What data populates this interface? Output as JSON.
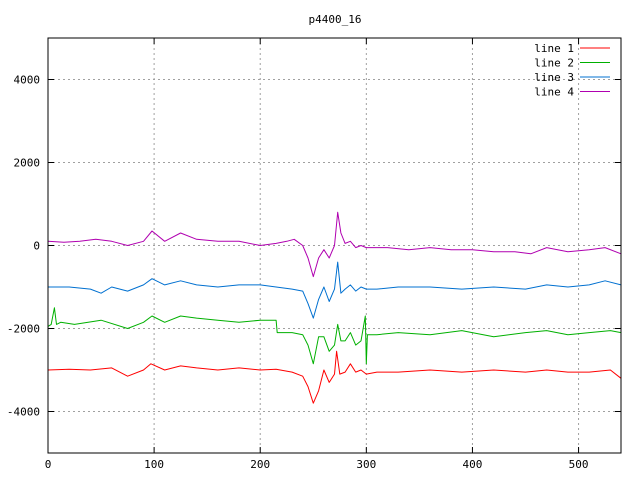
{
  "chart_data": {
    "type": "line",
    "title": "p4400_16",
    "xlabel": "",
    "ylabel": "",
    "xlim": [
      0,
      540
    ],
    "ylim": [
      -5000,
      5000
    ],
    "xticks": [
      0,
      100,
      200,
      300,
      400,
      500
    ],
    "yticks": [
      -4000,
      -2000,
      0,
      2000,
      4000
    ],
    "grid": true,
    "legend_position": "top-right",
    "series": [
      {
        "name": "line 1",
        "color": "#ff0000",
        "x": [
          0,
          20,
          40,
          60,
          75,
          90,
          97,
          110,
          125,
          140,
          160,
          180,
          200,
          215,
          230,
          240,
          245,
          250,
          255,
          260,
          265,
          270,
          272,
          275,
          280,
          285,
          290,
          295,
          300,
          310,
          330,
          360,
          390,
          420,
          450,
          470,
          490,
          510,
          530,
          540
        ],
        "y": [
          -3000,
          -2980,
          -3000,
          -2950,
          -3150,
          -3000,
          -2850,
          -3000,
          -2900,
          -2950,
          -3000,
          -2950,
          -3000,
          -2980,
          -3050,
          -3150,
          -3400,
          -3800,
          -3500,
          -3000,
          -3300,
          -3100,
          -2550,
          -3100,
          -3050,
          -2850,
          -3050,
          -3000,
          -3100,
          -3050,
          -3050,
          -3000,
          -3050,
          -3000,
          -3050,
          -3000,
          -3050,
          -3050,
          -3000,
          -3200
        ]
      },
      {
        "name": "line 2",
        "color": "#00b000",
        "x": [
          0,
          3,
          6,
          8,
          12,
          25,
          50,
          75,
          90,
          98,
          110,
          125,
          140,
          160,
          180,
          200,
          215,
          216,
          230,
          240,
          245,
          250,
          255,
          260,
          265,
          270,
          273,
          276,
          280,
          285,
          290,
          295,
          299,
          300,
          301,
          310,
          330,
          360,
          390,
          420,
          450,
          470,
          490,
          510,
          530,
          540
        ],
        "y": [
          -1950,
          -1900,
          -1500,
          -1900,
          -1850,
          -1900,
          -1800,
          -2000,
          -1850,
          -1700,
          -1850,
          -1700,
          -1750,
          -1800,
          -1850,
          -1800,
          -1800,
          -2100,
          -2100,
          -2150,
          -2400,
          -2850,
          -2200,
          -2200,
          -2550,
          -2400,
          -1900,
          -2300,
          -2300,
          -2100,
          -2400,
          -2300,
          -1700,
          -2850,
          -2150,
          -2150,
          -2100,
          -2150,
          -2050,
          -2200,
          -2100,
          -2050,
          -2150,
          -2100,
          -2050,
          -2100
        ]
      },
      {
        "name": "line 3",
        "color": "#0070d0",
        "x": [
          0,
          20,
          40,
          50,
          60,
          75,
          90,
          98,
          110,
          125,
          140,
          160,
          180,
          200,
          215,
          230,
          240,
          245,
          250,
          255,
          260,
          265,
          270,
          273,
          276,
          280,
          285,
          290,
          295,
          300,
          310,
          330,
          360,
          390,
          420,
          450,
          470,
          490,
          510,
          525,
          540
        ],
        "y": [
          -1000,
          -1000,
          -1050,
          -1150,
          -1000,
          -1100,
          -950,
          -800,
          -950,
          -850,
          -950,
          -1000,
          -950,
          -950,
          -1000,
          -1050,
          -1100,
          -1400,
          -1750,
          -1300,
          -1000,
          -1350,
          -1050,
          -400,
          -1150,
          -1050,
          -950,
          -1100,
          -1000,
          -1050,
          -1050,
          -1000,
          -1000,
          -1050,
          -1000,
          -1050,
          -950,
          -1000,
          -950,
          -850,
          -950
        ]
      },
      {
        "name": "line 4",
        "color": "#b000b0",
        "x": [
          0,
          15,
          30,
          45,
          60,
          75,
          90,
          98,
          110,
          125,
          140,
          160,
          180,
          200,
          215,
          225,
          232,
          240,
          245,
          250,
          255,
          260,
          265,
          270,
          273,
          276,
          280,
          285,
          290,
          295,
          300,
          320,
          340,
          360,
          380,
          400,
          420,
          440,
          455,
          470,
          490,
          510,
          525,
          540
        ],
        "y": [
          100,
          80,
          100,
          150,
          100,
          0,
          100,
          350,
          100,
          300,
          150,
          100,
          100,
          0,
          50,
          100,
          150,
          0,
          -300,
          -750,
          -300,
          -100,
          -300,
          0,
          800,
          300,
          50,
          100,
          -50,
          0,
          -50,
          -50,
          -100,
          -50,
          -100,
          -100,
          -150,
          -150,
          -200,
          -50,
          -150,
          -100,
          -50,
          -200
        ]
      }
    ]
  }
}
